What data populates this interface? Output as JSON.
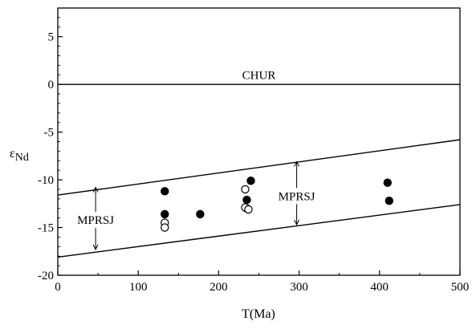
{
  "chart_data": {
    "type": "scatter",
    "xlabel": "T(Ma)",
    "ylabel_main": "ε",
    "ylabel_sub": "Nd",
    "xlim": [
      0,
      500
    ],
    "ylim": [
      -20,
      8
    ],
    "xticks": [
      0,
      100,
      200,
      300,
      400,
      500
    ],
    "yticks": [
      -20,
      -15,
      -10,
      -5,
      0,
      5
    ],
    "grid": false,
    "series": [
      {
        "marker": "filled-circle",
        "points": [
          [
            133,
            -11.2
          ],
          [
            133,
            -13.6
          ],
          [
            177,
            -13.6
          ],
          [
            235,
            -12.1
          ],
          [
            235,
            -13.0
          ],
          [
            240,
            -10.1
          ],
          [
            410,
            -10.3
          ],
          [
            412,
            -12.2
          ]
        ]
      },
      {
        "marker": "open-circle",
        "points": [
          [
            133,
            -14.5
          ],
          [
            133,
            -15.0
          ],
          [
            233,
            -11.0
          ],
          [
            233,
            -12.9
          ],
          [
            237,
            -13.1
          ]
        ]
      }
    ],
    "reference_lines": [
      {
        "label": "CHUR",
        "x": [
          0,
          500
        ],
        "y": [
          0,
          0
        ]
      },
      {
        "label": "",
        "x": [
          0,
          500
        ],
        "y": [
          -11.6,
          -5.8
        ]
      },
      {
        "label": "",
        "x": [
          0,
          500
        ],
        "y": [
          -18.1,
          -12.6
        ]
      }
    ],
    "annotations": [
      {
        "text": "CHUR",
        "x": 250,
        "y": 1.0
      },
      {
        "text": "MPRSJ",
        "x": 47,
        "y": -14.2,
        "arrow_up_to": -10.8,
        "arrow_down_to": -17.3
      },
      {
        "text": "MPRSJ",
        "x": 297,
        "y": -11.7,
        "arrow_up_to": -8.1,
        "arrow_down_to": -14.7
      }
    ]
  }
}
